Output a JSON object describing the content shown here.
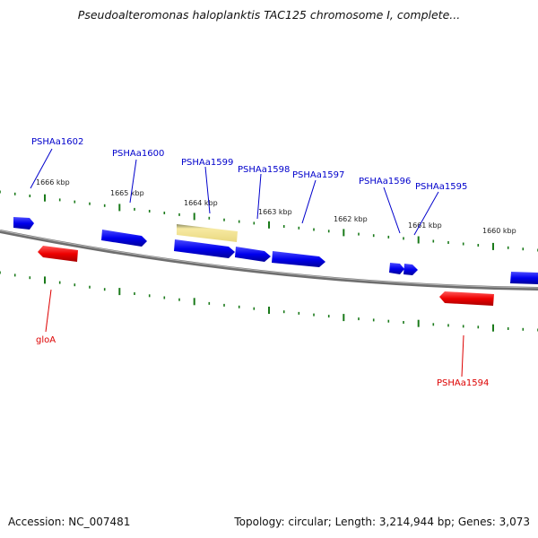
{
  "title": "Pseudoalteromonas haloplanktis TAC125 chromosome I, complete...",
  "accession": "Accession: NC_007481",
  "summary": "Topology: circular; Length: 3,214,944 bp; Genes: 3,073",
  "colors": {
    "backbone": "#888888",
    "plus_gene": "#0000ee",
    "minus_gene": "#ee0000",
    "highlight_gene": "#f0e08c",
    "tick": "#1a7a1a",
    "plus_label": "#0000cc",
    "minus_label": "#dd0000"
  },
  "scale_labels": [
    "1666 kbp",
    "1665 kbp",
    "1664 kbp",
    "1663 kbp",
    "1662 kbp",
    "1661 kbp",
    "1660 kbp"
  ],
  "gene_labels": {
    "plus": [
      "PSHAa1602",
      "PSHAa1600",
      "PSHAa1599",
      "PSHAa1598",
      "PSHAa1597",
      "PSHAa1596",
      "PSHAa1595"
    ],
    "minus": [
      "gloA",
      "PSHAa1594"
    ]
  }
}
